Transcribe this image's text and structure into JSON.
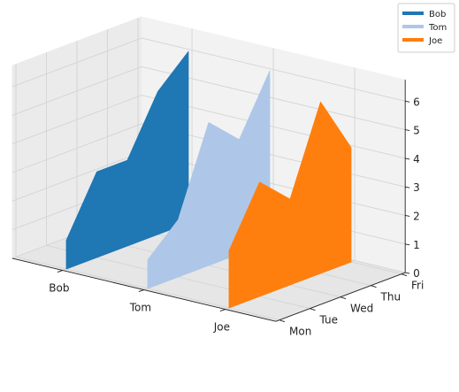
{
  "chart_data": {
    "type": "area",
    "variant": "3d-waterfall",
    "title": "",
    "xlabel": "",
    "ylabel": "",
    "zlabel": "",
    "series_axis": {
      "labels": [
        "Bob",
        "Tom",
        "Joe"
      ]
    },
    "days_axis": {
      "labels": [
        "Mon",
        "Tue",
        "Wed",
        "Thu",
        "Fri"
      ]
    },
    "value_axis": {
      "ticks": [
        "0",
        "1",
        "2",
        "3",
        "4",
        "5",
        "6"
      ],
      "range": [
        0,
        6
      ]
    },
    "days": [
      "Mon",
      "Tue",
      "Wed",
      "Thu",
      "Fri"
    ],
    "series": [
      {
        "name": "Bob",
        "color": "#1f77b4",
        "values": [
          1,
          3,
          3,
          5,
          6
        ]
      },
      {
        "name": "Tom",
        "color": "#aec7e8",
        "values": [
          1,
          2,
          5,
          4,
          6
        ]
      },
      {
        "name": "Joe",
        "color": "#ff7f0e",
        "values": [
          2,
          4,
          3,
          6,
          4
        ]
      }
    ],
    "legend": {
      "position": "top-right"
    },
    "grid": true
  }
}
